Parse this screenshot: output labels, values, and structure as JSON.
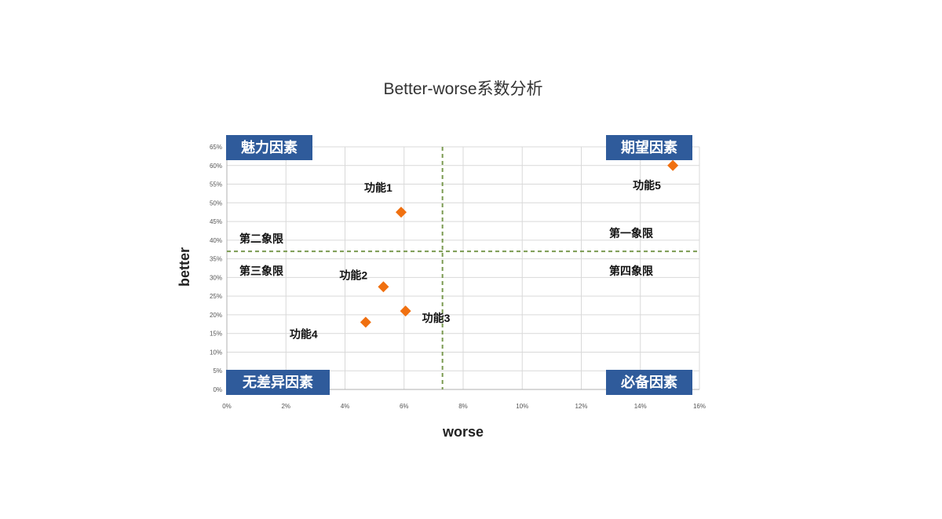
{
  "chart_data": {
    "type": "scatter",
    "title": "Better-worse系数分析",
    "xlabel": "worse",
    "ylabel": "better",
    "xlim": [
      0,
      16
    ],
    "ylim": [
      0,
      65
    ],
    "x_ticks": [
      "0%",
      "2%",
      "4%",
      "6%",
      "8%",
      "10%",
      "12%",
      "14%",
      "16%"
    ],
    "y_ticks": [
      "0%",
      "5%",
      "10%",
      "15%",
      "20%",
      "25%",
      "30%",
      "35%",
      "40%",
      "45%",
      "50%",
      "55%",
      "60%",
      "65%"
    ],
    "grid": true,
    "points": [
      {
        "label": "功能1",
        "x": 5.9,
        "y": 47.5
      },
      {
        "label": "功能2",
        "x": 5.3,
        "y": 27.5
      },
      {
        "label": "功能3",
        "x": 6.05,
        "y": 21.0
      },
      {
        "label": "功能4",
        "x": 4.7,
        "y": 18.0
      },
      {
        "label": "功能5",
        "x": 15.1,
        "y": 60.0
      }
    ],
    "reference_lines": {
      "x": 7.3,
      "y": 37.0
    },
    "quadrant_labels": {
      "q1": "第一象限",
      "q2": "第二象限",
      "q3": "第三象限",
      "q4": "第四象限"
    },
    "corner_labels": {
      "top_left": "魅力因素",
      "top_right": "期望因素",
      "bottom_left": "无差异因素",
      "bottom_right": "必备因素"
    },
    "colors": {
      "marker": "#f07010",
      "reference_line": "#7a9a50",
      "grid": "#d9d9d9",
      "corner_box": "#2f5b9b"
    }
  }
}
